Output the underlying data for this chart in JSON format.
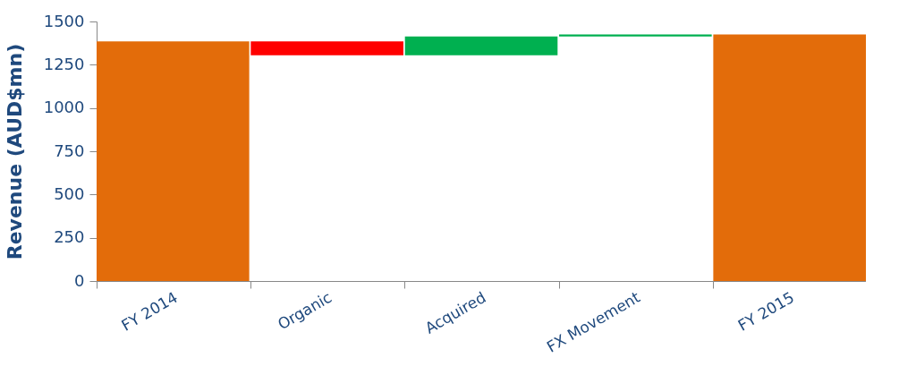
{
  "chart_data": {
    "type": "bar",
    "ylabel": "Revenue (AUD$mn)",
    "categories": [
      "FY 2014",
      "Organic",
      "Acquired",
      "FX Movement",
      "FY 2015"
    ],
    "values": [
      1385,
      -80,
      108,
      12,
      1425
    ],
    "base": [
      0,
      1385,
      1305,
      1413,
      0
    ],
    "colors": [
      "#e36c0a",
      "#ff0000",
      "#00b050",
      "#00b050",
      "#e36c0a"
    ],
    "ylim": [
      0,
      1500
    ],
    "yticks": [
      0,
      250,
      500,
      750,
      1000,
      1250,
      1500
    ],
    "grid": false
  }
}
